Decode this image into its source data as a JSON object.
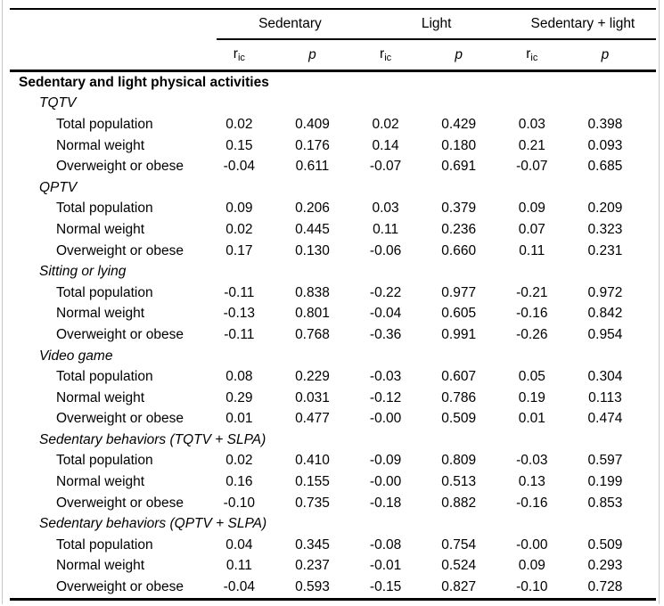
{
  "page": {
    "background": "#ffffff",
    "rule_color": "#000000",
    "frame_color": "#c9c9c9"
  },
  "table": {
    "column_groups": [
      {
        "label": "Sedentary"
      },
      {
        "label": "Light"
      },
      {
        "label": "Sedentary + light"
      }
    ],
    "stat_headers": {
      "r_symbol": "r",
      "r_subscript": "ic",
      "p_symbol": "p"
    },
    "top_header": "Sedentary and light physical activities",
    "sections": [
      {
        "title": "TQTV",
        "rows": [
          {
            "label": "Total population",
            "values": [
              "0.02",
              "0.409",
              "0.02",
              "0.429",
              "0.03",
              "0.398"
            ]
          },
          {
            "label": "Normal weight",
            "values": [
              "0.15",
              "0.176",
              "0.14",
              "0.180",
              "0.21",
              "0.093"
            ]
          },
          {
            "label": "Overweight or obese",
            "values": [
              "-0.04",
              "0.611",
              "-0.07",
              "0.691",
              "-0.07",
              "0.685"
            ]
          }
        ]
      },
      {
        "title": "QPTV",
        "rows": [
          {
            "label": "Total population",
            "values": [
              "0.09",
              "0.206",
              "0.03",
              "0.379",
              "0.09",
              "0.209"
            ]
          },
          {
            "label": "Normal weight",
            "values": [
              "0.02",
              "0.445",
              "0.11",
              "0.236",
              "0.07",
              "0.323"
            ]
          },
          {
            "label": "Overweight or obese",
            "values": [
              "0.17",
              "0.130",
              "-0.06",
              "0.660",
              "0.11",
              "0.231"
            ]
          }
        ]
      },
      {
        "title": "Sitting or lying",
        "rows": [
          {
            "label": "Total population",
            "values": [
              "-0.11",
              "0.838",
              "-0.22",
              "0.977",
              "-0.21",
              "0.972"
            ]
          },
          {
            "label": "Normal weight",
            "values": [
              "-0.13",
              "0.801",
              "-0.04",
              "0.605",
              "-0.16",
              "0.842"
            ]
          },
          {
            "label": "Overweight or obese",
            "values": [
              "-0.11",
              "0.768",
              "-0.36",
              "0.991",
              "-0.26",
              "0.954"
            ]
          }
        ]
      },
      {
        "title": "Video game",
        "rows": [
          {
            "label": "Total population",
            "values": [
              "0.08",
              "0.229",
              "-0.03",
              "0.607",
              "0.05",
              "0.304"
            ]
          },
          {
            "label": "Normal weight",
            "values": [
              "0.29",
              "0.031",
              "-0.12",
              "0.786",
              "0.19",
              "0.113"
            ]
          },
          {
            "label": "Overweight or obese",
            "values": [
              "0.01",
              "0.477",
              "-0.00",
              "0.509",
              "0.01",
              "0.474"
            ]
          }
        ]
      },
      {
        "title": "Sedentary behaviors (TQTV + SLPA)",
        "rows": [
          {
            "label": "Total population",
            "values": [
              "0.02",
              "0.410",
              "-0.09",
              "0.809",
              "-0.03",
              "0.597"
            ]
          },
          {
            "label": "Normal weight",
            "values": [
              "0.16",
              "0.155",
              "-0.00",
              "0.513",
              "0.13",
              "0.199"
            ]
          },
          {
            "label": "Overweight or obese",
            "values": [
              "-0.10",
              "0.735",
              "-0.18",
              "0.882",
              "-0.16",
              "0.853"
            ]
          }
        ]
      },
      {
        "title": "Sedentary behaviors (QPTV + SLPA)",
        "rows": [
          {
            "label": "Total population",
            "values": [
              "0.04",
              "0.345",
              "-0.08",
              "0.754",
              "-0.00",
              "0.509"
            ]
          },
          {
            "label": "Normal weight",
            "values": [
              "0.11",
              "0.237",
              "-0.01",
              "0.524",
              "0.09",
              "0.293"
            ]
          },
          {
            "label": "Overweight or obese",
            "values": [
              "-0.04",
              "0.593",
              "-0.15",
              "0.827",
              "-0.10",
              "0.728"
            ]
          }
        ]
      }
    ]
  }
}
